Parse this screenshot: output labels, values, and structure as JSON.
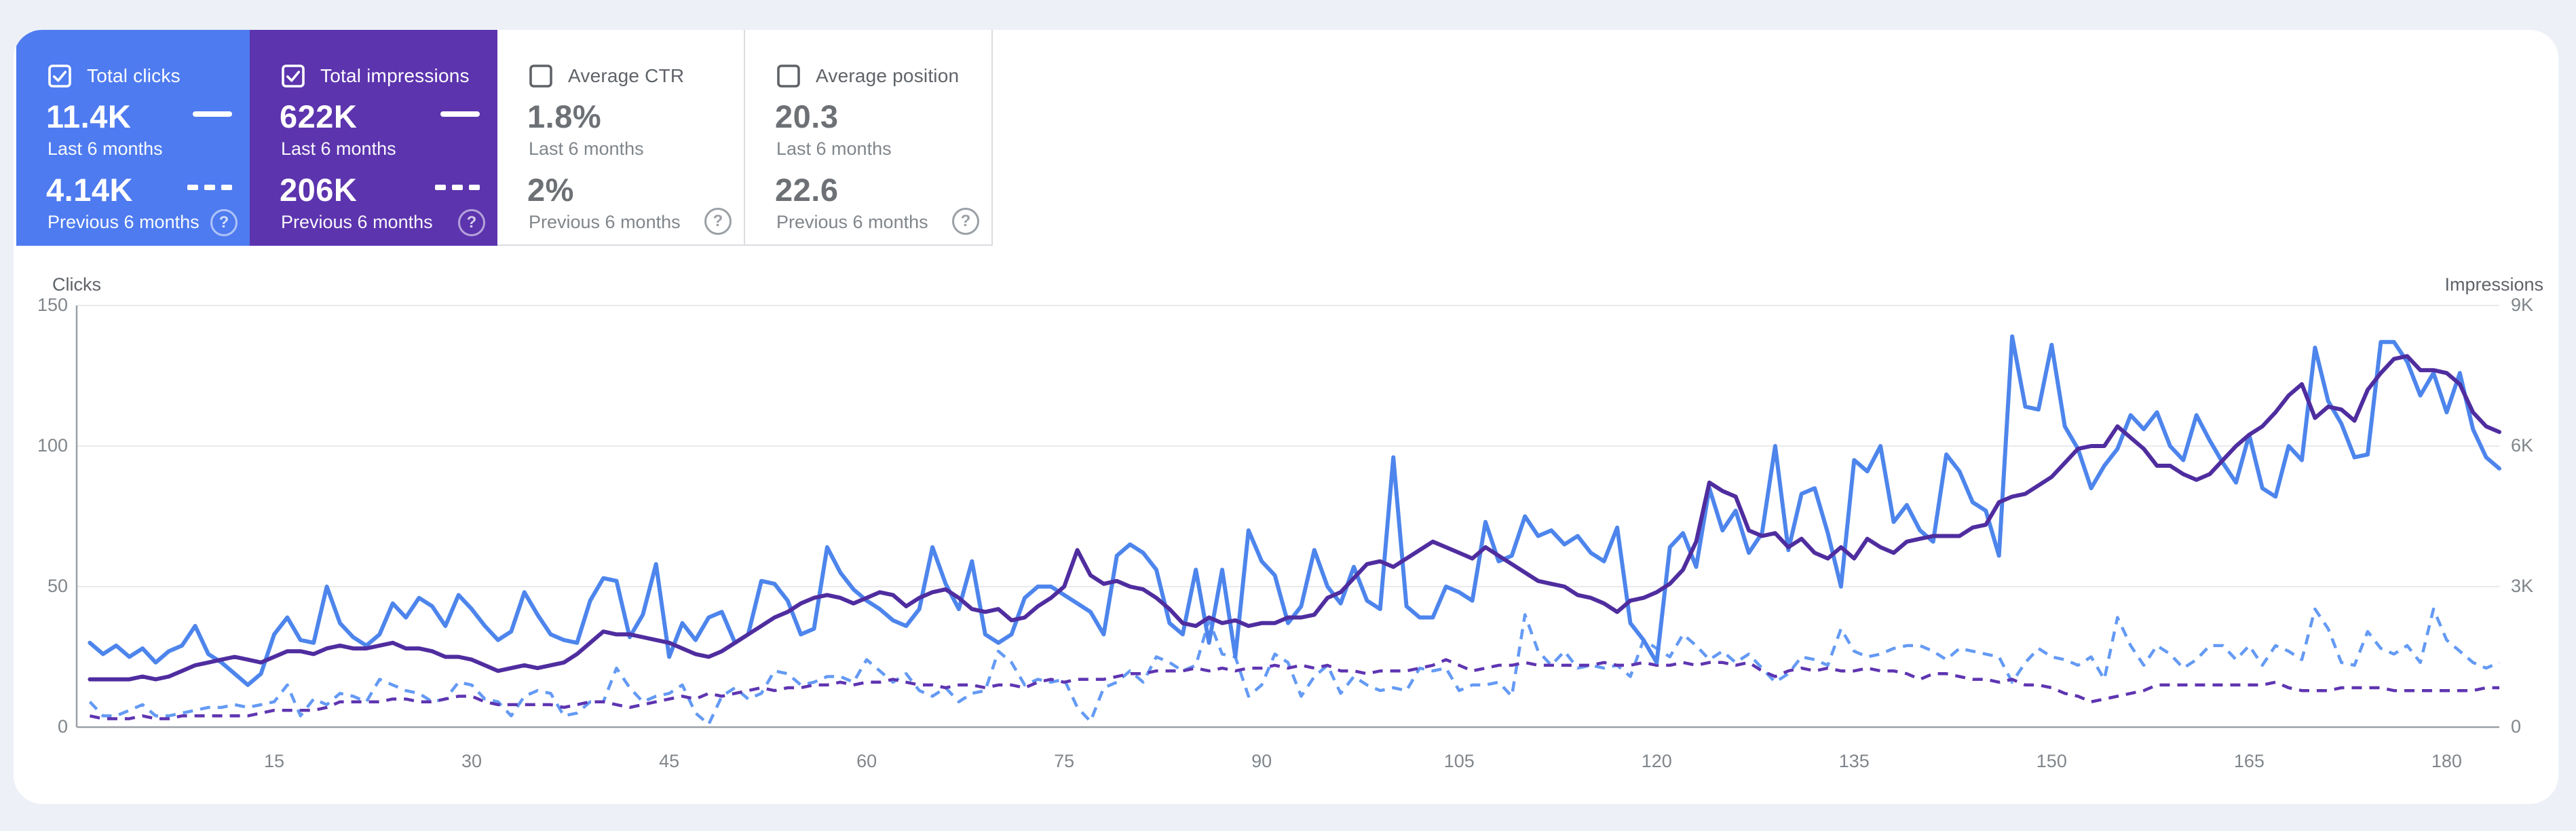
{
  "ui": {
    "help_icon_glyph": "?"
  },
  "cards": [
    {
      "id": "total-clicks",
      "label": "Total clicks",
      "checked": true,
      "value_current": "11.4K",
      "caption_current": "Last 6 months",
      "value_previous": "4.14K",
      "caption_previous": "Previous 6 months",
      "bg_color": "#4e7bef"
    },
    {
      "id": "total-impressions",
      "label": "Total impressions",
      "checked": true,
      "value_current": "622K",
      "caption_current": "Last 6 months",
      "value_previous": "206K",
      "caption_previous": "Previous 6 months",
      "bg_color": "#5c34ae"
    },
    {
      "id": "average-ctr",
      "label": "Average CTR",
      "checked": false,
      "value_current": "1.8%",
      "caption_current": "Last 6 months",
      "value_previous": "2%",
      "caption_previous": "Previous 6 months",
      "bg_color": "#ffffff"
    },
    {
      "id": "average-position",
      "label": "Average position",
      "checked": false,
      "value_current": "20.3",
      "caption_current": "Last 6 months",
      "value_previous": "22.6",
      "caption_previous": "Previous 6 months",
      "bg_color": "#ffffff"
    }
  ],
  "chart_data": {
    "type": "line",
    "x_unit": "day",
    "x_ticks": [
      15,
      30,
      45,
      60,
      75,
      90,
      105,
      120,
      135,
      150,
      165,
      180
    ],
    "y_left": {
      "label": "Clicks",
      "ticks": [
        "150",
        "100",
        "50",
        "0"
      ],
      "max": 150
    },
    "y_right": {
      "label": "Impressions",
      "ticks": [
        "9K",
        "6K",
        "3K",
        "0"
      ],
      "max": 9000
    },
    "grid": "horizontal",
    "series": [
      {
        "id": "clicks-current",
        "name": "Total clicks — Last 6 months",
        "axis": "left",
        "style": "solid",
        "color": "#4d85ec",
        "values": [
          30,
          26,
          29,
          25,
          28,
          23,
          27,
          29,
          36,
          26,
          23,
          19,
          15,
          19,
          33,
          39,
          31,
          30,
          50,
          37,
          32,
          29,
          33,
          44,
          39,
          46,
          43,
          36,
          47,
          42,
          36,
          31,
          34,
          48,
          40,
          33,
          31,
          30,
          45,
          53,
          52,
          32,
          40,
          58,
          25,
          37,
          31,
          39,
          41,
          30,
          33,
          52,
          51,
          45,
          33,
          35,
          64,
          55,
          49,
          45,
          42,
          38,
          36,
          42,
          64,
          51,
          42,
          59,
          33,
          30,
          33,
          46,
          50,
          50,
          47,
          44,
          41,
          33,
          61,
          65,
          62,
          56,
          37,
          33,
          56,
          30,
          56,
          25,
          70,
          59,
          54,
          37,
          43,
          63,
          50,
          44,
          57,
          45,
          42,
          96,
          43,
          39,
          39,
          50,
          48,
          45,
          73,
          59,
          61,
          75,
          68,
          70,
          65,
          68,
          62,
          59,
          71,
          37,
          31,
          23,
          64,
          69,
          57,
          85,
          70,
          77,
          62,
          69,
          100,
          63,
          83,
          85,
          69,
          50,
          95,
          91,
          100,
          73,
          79,
          70,
          66,
          97,
          91,
          80,
          77,
          61,
          139,
          114,
          113,
          136,
          107,
          99,
          85,
          93,
          99,
          111,
          106,
          112,
          100,
          95,
          111,
          102,
          94,
          87,
          104,
          85,
          82,
          100,
          95,
          135,
          116,
          108,
          96,
          97,
          137,
          137,
          130,
          118,
          126,
          112,
          126,
          106,
          96,
          92
        ]
      },
      {
        "id": "impressions-current",
        "name": "Total impressions — Last 6 months",
        "axis": "right",
        "style": "solid",
        "color": "#4f2d9f",
        "values": [
          1020,
          1020,
          1020,
          1020,
          1080,
          1020,
          1080,
          1200,
          1320,
          1380,
          1440,
          1500,
          1440,
          1380,
          1500,
          1620,
          1620,
          1560,
          1680,
          1740,
          1680,
          1680,
          1740,
          1800,
          1680,
          1680,
          1620,
          1500,
          1500,
          1440,
          1320,
          1200,
          1260,
          1320,
          1260,
          1320,
          1380,
          1560,
          1800,
          2040,
          1980,
          1980,
          1920,
          1860,
          1800,
          1680,
          1560,
          1500,
          1620,
          1800,
          1980,
          2160,
          2340,
          2460,
          2640,
          2760,
          2820,
          2760,
          2640,
          2760,
          2880,
          2820,
          2580,
          2760,
          2880,
          2940,
          2760,
          2520,
          2460,
          2520,
          2280,
          2340,
          2580,
          2760,
          3000,
          3780,
          3240,
          3060,
          3120,
          3000,
          2940,
          2760,
          2520,
          2220,
          2160,
          2340,
          2220,
          2280,
          2160,
          2220,
          2220,
          2340,
          2340,
          2400,
          2760,
          2880,
          3180,
          3480,
          3540,
          3420,
          3600,
          3780,
          3960,
          3840,
          3720,
          3600,
          3840,
          3660,
          3480,
          3300,
          3120,
          3060,
          3000,
          2820,
          2760,
          2640,
          2460,
          2700,
          2760,
          2880,
          3060,
          3360,
          3960,
          5220,
          5040,
          4920,
          4200,
          4080,
          4140,
          3840,
          4020,
          3720,
          3600,
          3840,
          3600,
          4020,
          3840,
          3720,
          3960,
          4020,
          4080,
          4080,
          4080,
          4260,
          4320,
          4800,
          4920,
          4980,
          5160,
          5340,
          5640,
          5940,
          6000,
          6000,
          6420,
          6180,
          5940,
          5580,
          5580,
          5400,
          5280,
          5400,
          5700,
          6000,
          6240,
          6420,
          6720,
          7080,
          7320,
          6600,
          6840,
          6780,
          6540,
          7200,
          7560,
          7860,
          7920,
          7620,
          7620,
          7560,
          7320,
          6720,
          6420,
          6300
        ]
      },
      {
        "id": "clicks-previous",
        "name": "Total clicks — Previous 6 months",
        "axis": "left",
        "style": "dashed",
        "color": "#649af4",
        "values": [
          9,
          4,
          4,
          6,
          8,
          4,
          4,
          5,
          6,
          7,
          7,
          8,
          7,
          8,
          9,
          15,
          4,
          10,
          8,
          12,
          11,
          9,
          17,
          15,
          13,
          12,
          9,
          10,
          16,
          15,
          10,
          9,
          4,
          11,
          13,
          12,
          4,
          5,
          9,
          9,
          21,
          14,
          9,
          11,
          12,
          15,
          5,
          1,
          11,
          14,
          10,
          12,
          20,
          19,
          15,
          16,
          18,
          18,
          16,
          24,
          20,
          16,
          19,
          13,
          11,
          14,
          9,
          12,
          13,
          27,
          23,
          15,
          17,
          16,
          17,
          7,
          2,
          14,
          16,
          20,
          16,
          25,
          23,
          20,
          22,
          38,
          26,
          25,
          11,
          15,
          26,
          23,
          11,
          18,
          22,
          12,
          18,
          15,
          13,
          14,
          13,
          21,
          20,
          21,
          13,
          15,
          15,
          16,
          11,
          40,
          27,
          22,
          27,
          21,
          22,
          21,
          22,
          18,
          31,
          28,
          25,
          33,
          29,
          24,
          27,
          23,
          26,
          21,
          16,
          19,
          25,
          24,
          22,
          35,
          27,
          25,
          26,
          28,
          29,
          29,
          27,
          24,
          28,
          27,
          26,
          25,
          16,
          23,
          28,
          25,
          24,
          22,
          25,
          17,
          39,
          29,
          22,
          29,
          26,
          21,
          24,
          29,
          29,
          24,
          29,
          22,
          29,
          27,
          24,
          42,
          35,
          23,
          22,
          34,
          28,
          26,
          29,
          23,
          42,
          31,
          27,
          23,
          21,
          23
        ]
      },
      {
        "id": "impressions-previous",
        "name": "Total impressions — Previous 6 months",
        "axis": "right",
        "style": "dashed",
        "color": "#5e35b1",
        "values": [
          240,
          180,
          180,
          180,
          240,
          180,
          180,
          240,
          240,
          240,
          240,
          240,
          240,
          300,
          360,
          360,
          360,
          360,
          420,
          540,
          540,
          540,
          540,
          600,
          600,
          540,
          540,
          600,
          660,
          660,
          540,
          480,
          480,
          480,
          480,
          480,
          420,
          480,
          540,
          540,
          480,
          420,
          480,
          540,
          600,
          660,
          600,
          720,
          660,
          720,
          780,
          840,
          780,
          840,
          840,
          900,
          900,
          960,
          900,
          960,
          960,
          1020,
          960,
          900,
          900,
          840,
          900,
          900,
          840,
          900,
          900,
          840,
          960,
          1020,
          960,
          1020,
          1020,
          1020,
          1080,
          1140,
          1140,
          1200,
          1200,
          1200,
          1260,
          1200,
          1260,
          1200,
          1260,
          1260,
          1320,
          1260,
          1320,
          1260,
          1320,
          1200,
          1200,
          1140,
          1200,
          1200,
          1200,
          1260,
          1320,
          1440,
          1320,
          1200,
          1260,
          1320,
          1320,
          1380,
          1320,
          1320,
          1320,
          1320,
          1320,
          1380,
          1320,
          1320,
          1380,
          1320,
          1320,
          1380,
          1320,
          1380,
          1380,
          1320,
          1380,
          1200,
          1080,
          1200,
          1260,
          1200,
          1260,
          1200,
          1200,
          1260,
          1200,
          1200,
          1140,
          1020,
          1140,
          1140,
          1080,
          1020,
          1020,
          960,
          1020,
          900,
          900,
          840,
          720,
          660,
          540,
          600,
          660,
          720,
          780,
          900,
          900,
          900,
          900,
          900,
          900,
          900,
          900,
          900,
          960,
          840,
          780,
          780,
          780,
          840,
          840,
          840,
          840,
          780,
          780,
          780,
          780,
          780,
          780,
          780,
          840,
          840
        ]
      }
    ]
  }
}
